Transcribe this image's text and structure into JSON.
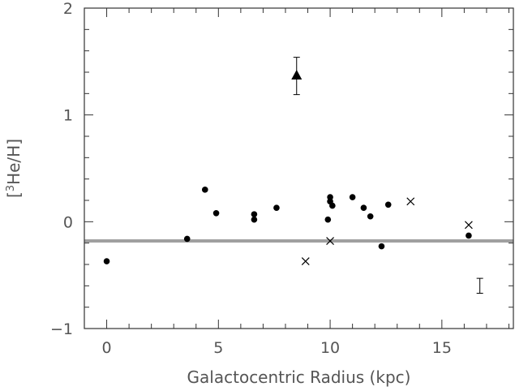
{
  "chart_data": {
    "type": "scatter",
    "xlabel": "Galactocentric Radius (kpc)",
    "ylabel": "[3He/H]",
    "ylabel_parts": {
      "open": "[",
      "sup": "3",
      "main": "He/H]"
    },
    "xlim": [
      -1,
      18.2
    ],
    "ylim": [
      -1,
      2
    ],
    "xticks": [
      0,
      5,
      10,
      15
    ],
    "yticks": [
      -1,
      0,
      1,
      2
    ],
    "tick_labels_x": [
      "0",
      "5",
      "10",
      "15"
    ],
    "tick_labels_y": [
      "−1",
      "0",
      "1",
      "2"
    ],
    "grid": false,
    "reference_line": {
      "y": -0.18,
      "color": "#a0a0a0"
    },
    "series": [
      {
        "marker": "circle",
        "points": [
          {
            "x": 0.0,
            "y": -0.37
          },
          {
            "x": 3.6,
            "y": -0.16
          },
          {
            "x": 4.4,
            "y": 0.3
          },
          {
            "x": 4.9,
            "y": 0.08
          },
          {
            "x": 6.6,
            "y": 0.07
          },
          {
            "x": 6.6,
            "y": 0.02
          },
          {
            "x": 7.6,
            "y": 0.13
          },
          {
            "x": 9.9,
            "y": 0.02
          },
          {
            "x": 10.0,
            "y": 0.23
          },
          {
            "x": 10.0,
            "y": 0.19
          },
          {
            "x": 10.1,
            "y": 0.15
          },
          {
            "x": 11.0,
            "y": 0.23
          },
          {
            "x": 11.5,
            "y": 0.13
          },
          {
            "x": 11.8,
            "y": 0.05
          },
          {
            "x": 12.3,
            "y": -0.23
          },
          {
            "x": 12.6,
            "y": 0.16
          },
          {
            "x": 16.2,
            "y": -0.13
          }
        ]
      },
      {
        "marker": "cross",
        "points": [
          {
            "x": 8.9,
            "y": -0.37
          },
          {
            "x": 10.0,
            "y": -0.18
          },
          {
            "x": 13.6,
            "y": 0.19
          },
          {
            "x": 16.2,
            "y": -0.03
          }
        ]
      },
      {
        "marker": "triangle",
        "points": [
          {
            "x": 8.5,
            "y": 1.37,
            "err_low": 1.19,
            "err_high": 1.54
          }
        ]
      }
    ],
    "typical_error_bar": {
      "x": 16.7,
      "y_low": -0.67,
      "y_high": -0.53
    }
  }
}
